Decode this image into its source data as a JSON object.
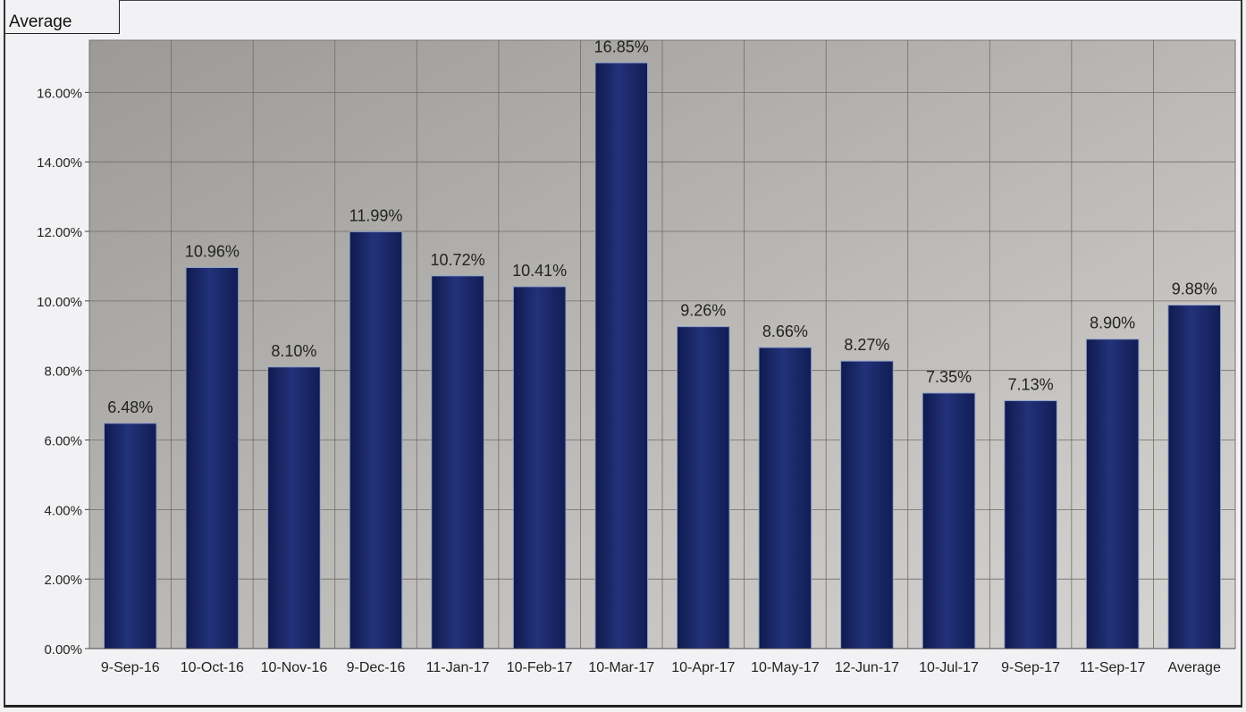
{
  "header": {
    "label": "Average"
  },
  "chart_data": {
    "type": "bar",
    "categories": [
      "9-Sep-16",
      "10-Oct-16",
      "10-Nov-16",
      "9-Dec-16",
      "11-Jan-17",
      "10-Feb-17",
      "10-Mar-17",
      "10-Apr-17",
      "10-May-17",
      "12-Jun-17",
      "10-Jul-17",
      "9-Sep-17",
      "11-Sep-17",
      "Average"
    ],
    "values": [
      6.48,
      10.96,
      8.1,
      11.99,
      10.72,
      10.41,
      16.85,
      9.26,
      8.66,
      8.27,
      7.35,
      7.13,
      8.9,
      9.88
    ],
    "data_labels": [
      "6.48%",
      "10.96%",
      "8.10%",
      "11.99%",
      "10.72%",
      "10.41%",
      "16.85%",
      "9.26%",
      "8.66%",
      "8.27%",
      "7.35%",
      "7.13%",
      "8.90%",
      "9.88%"
    ],
    "y_ticks": [
      "0.00%",
      "2.00%",
      "4.00%",
      "6.00%",
      "8.00%",
      "10.00%",
      "12.00%",
      "14.00%",
      "16.00%"
    ],
    "ylim": [
      0,
      17.5
    ],
    "grid": true,
    "bar_color": "#1c2a66",
    "plot_bg": "#a9a7a3"
  }
}
